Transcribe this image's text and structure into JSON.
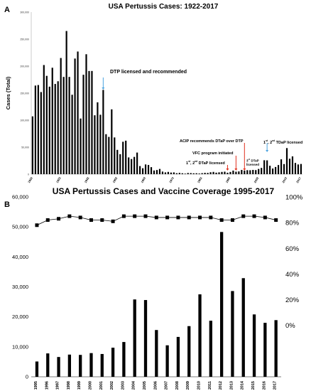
{
  "panel_a_label": "A",
  "panel_b_label": "B",
  "chart_data": [
    {
      "type": "bar",
      "title": "USA Pertussis Cases: 1922-2017",
      "ylabel": "Cases (Total)",
      "xlabel": "",
      "ylim": [
        0,
        300000
      ],
      "yticks": [
        "0",
        "50,000",
        "100,000",
        "150,000",
        "200,000",
        "250,000",
        "300,000"
      ],
      "xtick_labels": [
        "1922",
        "1932",
        "1942",
        "1952",
        "1962",
        "1972",
        "1982",
        "1992",
        "2002",
        "2012",
        "2017"
      ],
      "x": [
        1922,
        1923,
        1924,
        1925,
        1926,
        1927,
        1928,
        1929,
        1930,
        1931,
        1932,
        1933,
        1934,
        1935,
        1936,
        1937,
        1938,
        1939,
        1940,
        1941,
        1942,
        1943,
        1944,
        1945,
        1946,
        1947,
        1948,
        1949,
        1950,
        1951,
        1952,
        1953,
        1954,
        1955,
        1956,
        1957,
        1958,
        1959,
        1960,
        1961,
        1962,
        1963,
        1964,
        1965,
        1966,
        1967,
        1968,
        1969,
        1970,
        1971,
        1972,
        1973,
        1974,
        1975,
        1976,
        1977,
        1978,
        1979,
        1980,
        1981,
        1982,
        1983,
        1984,
        1985,
        1986,
        1987,
        1988,
        1989,
        1990,
        1991,
        1992,
        1993,
        1994,
        1995,
        1996,
        1997,
        1998,
        1999,
        2000,
        2001,
        2002,
        2003,
        2004,
        2005,
        2006,
        2007,
        2008,
        2009,
        2010,
        2011,
        2012,
        2013,
        2014,
        2015,
        2016,
        2017
      ],
      "values": [
        107000,
        164000,
        165000,
        152000,
        202000,
        182000,
        162000,
        197000,
        167000,
        172000,
        215000,
        180000,
        265000,
        180000,
        147000,
        214000,
        227000,
        103000,
        184000,
        222000,
        191000,
        191000,
        109000,
        133000,
        110000,
        156000,
        74000,
        69000,
        120000,
        68000,
        45000,
        37000,
        60000,
        62000,
        31000,
        28000,
        32000,
        40000,
        15000,
        11000,
        18000,
        17000,
        13000,
        6800,
        7700,
        9700,
        4800,
        3300,
        4200,
        3000,
        3300,
        1800,
        2400,
        1700,
        1000,
        2200,
        2000,
        1600,
        1700,
        1200,
        1900,
        2500,
        2300,
        3600,
        4200,
        2800,
        3400,
        4200,
        4600,
        2700,
        4100,
        6600,
        4600,
        5100,
        7800,
        6600,
        7400,
        7300,
        7900,
        7600,
        9700,
        11600,
        25800,
        25600,
        15600,
        10500,
        13300,
        16900,
        27500,
        18700,
        48300,
        28600,
        32900,
        20800,
        18000,
        18900
      ]
    },
    {
      "type": "bar+line",
      "title": "USA Pertussis Cases and Vaccine Coverage 1995-2017",
      "categories": [
        "1995",
        "1996",
        "1997",
        "1998",
        "1999",
        "2000",
        "2001",
        "2002",
        "2003",
        "2004",
        "2005",
        "2006",
        "2007",
        "2008",
        "2009",
        "2010",
        "2011",
        "2012",
        "2013",
        "2014",
        "2015",
        "2016",
        "2017"
      ],
      "left_axis": {
        "ylim": [
          0,
          60000
        ],
        "ticks": [
          "0",
          "10,000",
          "20,000",
          "30,000",
          "40,000",
          "50,000",
          "60,000"
        ]
      },
      "right_axis": {
        "ylim": [
          -0.4,
          1.0
        ],
        "ticks": [
          "0%",
          "20%",
          "40%",
          "60%",
          "80%",
          "100%"
        ]
      },
      "series": [
        {
          "type": "bar",
          "values": [
            5100,
            7800,
            6600,
            7400,
            7300,
            7900,
            7600,
            9700,
            11600,
            25800,
            25600,
            15600,
            10500,
            13300,
            16900,
            27500,
            18700,
            48300,
            28600,
            32900,
            20800,
            18000,
            18900
          ]
        },
        {
          "type": "line",
          "marker": "square",
          "values": [
            0.78,
            0.82,
            0.83,
            0.85,
            0.84,
            0.82,
            0.82,
            0.81,
            0.85,
            0.85,
            0.85,
            0.84,
            0.84,
            0.84,
            0.84,
            0.84,
            0.84,
            0.82,
            0.82,
            0.85,
            0.85,
            0.84,
            0.82
          ]
        }
      ]
    }
  ],
  "annotations": {
    "dtp": "DTP licensed and recommended",
    "acip": "ACIP recommends DTaP over DTP",
    "vfc": "VFC program initiated",
    "dtap12_num1": "1",
    "dtap12_sup1": "st",
    "dtap12_sep": ", ",
    "dtap12_num2": "2",
    "dtap12_sup2": "nd",
    "dtap12_text": " DTaP licensed",
    "dtap3_num": "3",
    "dtap3_sup": "rd",
    "dtap3_text": " DTaP",
    "dtap3_line2": "licensed",
    "tdap_num1": "1",
    "tdap_sup1": "st",
    "tdap_sep": ", ",
    "tdap_num2": "2",
    "tdap_sup2": "nd",
    "tdap_text": " TDaP licensed"
  },
  "colors": {
    "bars": "#000000",
    "arrow_blue": "#4aa3df",
    "arrow_red": "#e0301e"
  }
}
